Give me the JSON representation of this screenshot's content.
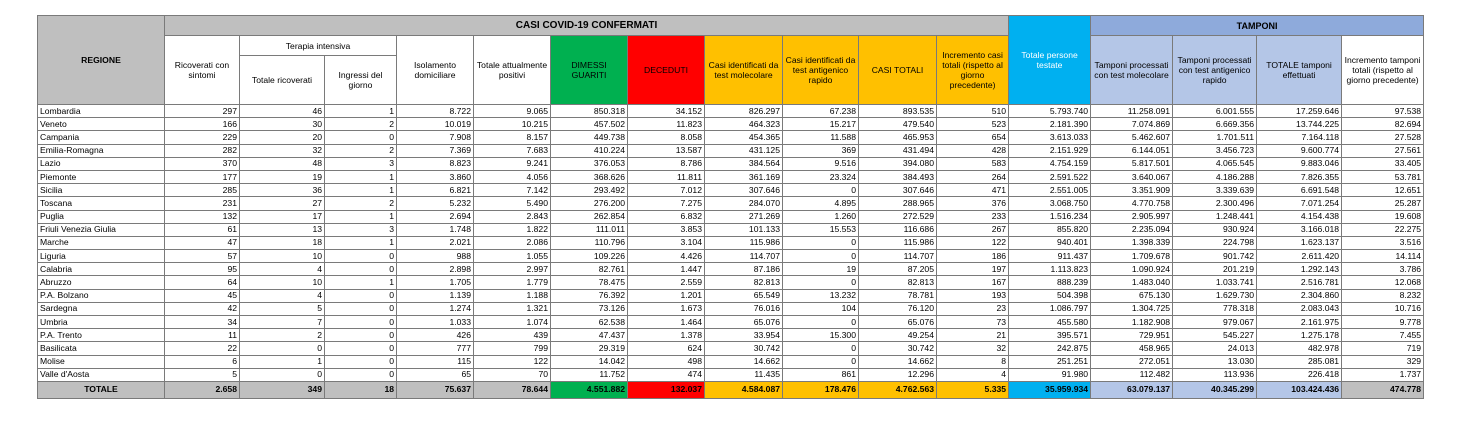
{
  "headers": {
    "region": "REGIONE",
    "confirmed_group": "CASI COVID-19 CONFERMATI",
    "tamponi_group": "TAMPONI",
    "icu_group": "Terapia intensiva",
    "ricoverati": "Ricoverati con sintomi",
    "ti_totale": "Totale ricoverati",
    "ti_ingressi": "Ingressi del giorno",
    "isolamento": "Isolamento domiciliare",
    "totale_positivi": "Totale attualmente positivi",
    "dimessi": "DIMESSI GUARITI",
    "deceduti": "DECEDUTI",
    "casi_molecolare": "Casi identificati da test molecolare",
    "casi_antigenico": "Casi identificati da test antigenico rapido",
    "casi_totali": "CASI TOTALI",
    "incremento_casi": "Incremento casi totali (rispetto al giorno precedente)",
    "persone_testate": "Totale persone testate",
    "tamponi_molecolare": "Tamponi processati con test molecolare",
    "tamponi_antigenico": "Tamponi processati con test antigenico rapido",
    "tamponi_totale": "TOTALE tamponi effettuati",
    "incremento_tamponi": "Incremento tamponi totali (rispetto al giorno precedente)"
  },
  "colors": {
    "gray": "#bfbfbf",
    "blue_header": "#8eaadb",
    "light_blue": "#b4c6e7",
    "green": "#00b050",
    "red": "#ff0000",
    "orange": "#ffc000",
    "cyan": "#00b0f0"
  },
  "rows": [
    [
      "Lombardia",
      "297",
      "46",
      "1",
      "8.722",
      "9.065",
      "850.318",
      "34.152",
      "826.297",
      "67.238",
      "893.535",
      "510",
      "5.793.740",
      "11.258.091",
      "6.001.555",
      "17.259.646",
      "97.538"
    ],
    [
      "Veneto",
      "166",
      "30",
      "2",
      "10.019",
      "10.215",
      "457.502",
      "11.823",
      "464.323",
      "15.217",
      "479.540",
      "523",
      "2.181.390",
      "7.074.869",
      "6.669.356",
      "13.744.225",
      "82.694"
    ],
    [
      "Campania",
      "229",
      "20",
      "0",
      "7.908",
      "8.157",
      "449.738",
      "8.058",
      "454.365",
      "11.588",
      "465.953",
      "654",
      "3.613.033",
      "5.462.607",
      "1.701.511",
      "7.164.118",
      "27.528"
    ],
    [
      "Emilia-Romagna",
      "282",
      "32",
      "2",
      "7.369",
      "7.683",
      "410.224",
      "13.587",
      "431.125",
      "369",
      "431.494",
      "428",
      "2.151.929",
      "6.144.051",
      "3.456.723",
      "9.600.774",
      "27.561"
    ],
    [
      "Lazio",
      "370",
      "48",
      "3",
      "8.823",
      "9.241",
      "376.053",
      "8.786",
      "384.564",
      "9.516",
      "394.080",
      "583",
      "4.754.159",
      "5.817.501",
      "4.065.545",
      "9.883.046",
      "33.405"
    ],
    [
      "Piemonte",
      "177",
      "19",
      "1",
      "3.860",
      "4.056",
      "368.626",
      "11.811",
      "361.169",
      "23.324",
      "384.493",
      "264",
      "2.591.522",
      "3.640.067",
      "4.186.288",
      "7.826.355",
      "53.781"
    ],
    [
      "Sicilia",
      "285",
      "36",
      "1",
      "6.821",
      "7.142",
      "293.492",
      "7.012",
      "307.646",
      "0",
      "307.646",
      "471",
      "2.551.005",
      "3.351.909",
      "3.339.639",
      "6.691.548",
      "12.651"
    ],
    [
      "Toscana",
      "231",
      "27",
      "2",
      "5.232",
      "5.490",
      "276.200",
      "7.275",
      "284.070",
      "4.895",
      "288.965",
      "376",
      "3.068.750",
      "4.770.758",
      "2.300.496",
      "7.071.254",
      "25.287"
    ],
    [
      "Puglia",
      "132",
      "17",
      "1",
      "2.694",
      "2.843",
      "262.854",
      "6.832",
      "271.269",
      "1.260",
      "272.529",
      "233",
      "1.516.234",
      "2.905.997",
      "1.248.441",
      "4.154.438",
      "19.608"
    ],
    [
      "Friuli Venezia Giulia",
      "61",
      "13",
      "3",
      "1.748",
      "1.822",
      "111.011",
      "3.853",
      "101.133",
      "15.553",
      "116.686",
      "267",
      "855.820",
      "2.235.094",
      "930.924",
      "3.166.018",
      "22.275"
    ],
    [
      "Marche",
      "47",
      "18",
      "1",
      "2.021",
      "2.086",
      "110.796",
      "3.104",
      "115.986",
      "0",
      "115.986",
      "122",
      "940.401",
      "1.398.339",
      "224.798",
      "1.623.137",
      "3.516"
    ],
    [
      "Liguria",
      "57",
      "10",
      "0",
      "988",
      "1.055",
      "109.226",
      "4.426",
      "114.707",
      "0",
      "114.707",
      "186",
      "911.437",
      "1.709.678",
      "901.742",
      "2.611.420",
      "14.114"
    ],
    [
      "Calabria",
      "95",
      "4",
      "0",
      "2.898",
      "2.997",
      "82.761",
      "1.447",
      "87.186",
      "19",
      "87.205",
      "197",
      "1.113.823",
      "1.090.924",
      "201.219",
      "1.292.143",
      "3.786"
    ],
    [
      "Abruzzo",
      "64",
      "10",
      "1",
      "1.705",
      "1.779",
      "78.475",
      "2.559",
      "82.813",
      "0",
      "82.813",
      "167",
      "888.239",
      "1.483.040",
      "1.033.741",
      "2.516.781",
      "12.068"
    ],
    [
      "P.A. Bolzano",
      "45",
      "4",
      "0",
      "1.139",
      "1.188",
      "76.392",
      "1.201",
      "65.549",
      "13.232",
      "78.781",
      "193",
      "504.398",
      "675.130",
      "1.629.730",
      "2.304.860",
      "8.232"
    ],
    [
      "Sardegna",
      "42",
      "5",
      "0",
      "1.274",
      "1.321",
      "73.126",
      "1.673",
      "76.016",
      "104",
      "76.120",
      "23",
      "1.086.797",
      "1.304.725",
      "778.318",
      "2.083.043",
      "10.716"
    ],
    [
      "Umbria",
      "34",
      "7",
      "0",
      "1.033",
      "1.074",
      "62.538",
      "1.464",
      "65.076",
      "0",
      "65.076",
      "73",
      "455.580",
      "1.182.908",
      "979.067",
      "2.161.975",
      "9.778"
    ],
    [
      "P.A. Trento",
      "11",
      "2",
      "0",
      "426",
      "439",
      "47.437",
      "1.378",
      "33.954",
      "15.300",
      "49.254",
      "21",
      "395.571",
      "729.951",
      "545.227",
      "1.275.178",
      "7.455"
    ],
    [
      "Basilicata",
      "22",
      "0",
      "0",
      "777",
      "799",
      "29.319",
      "624",
      "30.742",
      "0",
      "30.742",
      "32",
      "242.875",
      "458.965",
      "24.013",
      "482.978",
      "719"
    ],
    [
      "Molise",
      "6",
      "1",
      "0",
      "115",
      "122",
      "14.042",
      "498",
      "14.662",
      "0",
      "14.662",
      "8",
      "251.251",
      "272.051",
      "13.030",
      "285.081",
      "329"
    ],
    [
      "Valle d'Aosta",
      "5",
      "0",
      "0",
      "65",
      "70",
      "11.752",
      "474",
      "11.435",
      "861",
      "12.296",
      "4",
      "91.980",
      "112.482",
      "113.936",
      "226.418",
      "1.737"
    ]
  ],
  "total": [
    "TOTALE",
    "2.658",
    "349",
    "18",
    "75.637",
    "78.644",
    "4.551.882",
    "132.037",
    "4.584.087",
    "178.476",
    "4.762.563",
    "5.335",
    "35.959.934",
    "63.079.137",
    "40.345.299",
    "103.424.436",
    "474.778"
  ]
}
